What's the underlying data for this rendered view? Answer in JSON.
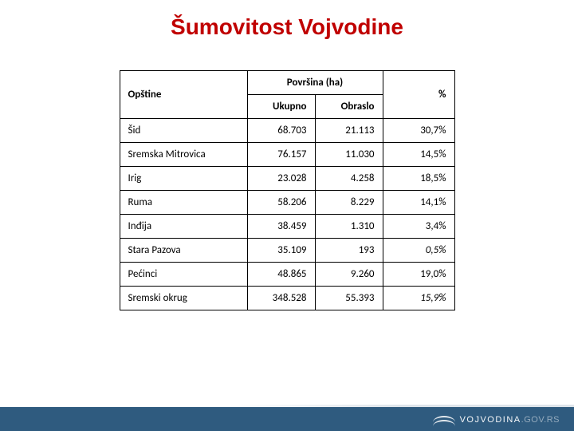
{
  "title": {
    "text": "Šumovitost Vojvodine",
    "color": "#c00000",
    "fontsize": 28
  },
  "table": {
    "columns": {
      "opstine": "Opštine",
      "povrsina": "Površina (ha)",
      "ukupno": "Ukupno",
      "obraslo": "Obraslo",
      "pct": "%"
    },
    "col_widths": {
      "opstine": 160,
      "ukupno": 85,
      "obraslo": 85,
      "pct": 90
    },
    "rows": [
      {
        "opstina": "Šid",
        "ukupno": "68.703",
        "obraslo": "21.113",
        "pct": "30,7%",
        "italic": false
      },
      {
        "opstina": "Sremska Mitrovica",
        "ukupno": "76.157",
        "obraslo": "11.030",
        "pct": "14,5%",
        "italic": false
      },
      {
        "opstina": "Irig",
        "ukupno": "23.028",
        "obraslo": "4.258",
        "pct": "18,5%",
        "italic": false
      },
      {
        "opstina": "Ruma",
        "ukupno": "58.206",
        "obraslo": "8.229",
        "pct": "14,1%",
        "italic": false
      },
      {
        "opstina": "Inđija",
        "ukupno": "38.459",
        "obraslo": "1.310",
        "pct": "3,4%",
        "italic": false
      },
      {
        "opstina": "Stara Pazova",
        "ukupno": "35.109",
        "obraslo": "193",
        "pct": "0,5%",
        "italic": true
      },
      {
        "opstina": "Pećinci",
        "ukupno": "48.865",
        "obraslo": "9.260",
        "pct": "19,0%",
        "italic": false
      },
      {
        "opstina": "Sremski okrug",
        "ukupno": "348.528",
        "obraslo": "55.393",
        "pct": "15,9%",
        "italic": true
      }
    ],
    "colors": {
      "border": "#000000",
      "text": "#000000",
      "background": "#ffffff"
    }
  },
  "footer": {
    "bg_color": "#2f5b7f",
    "brand": "VOJVODINA",
    "brand_suffix": ".GOV.RS"
  }
}
